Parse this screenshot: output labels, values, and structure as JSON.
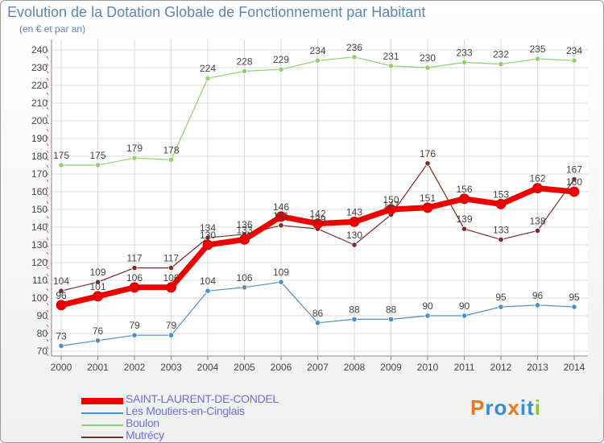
{
  "title": "Evolution de la Dotation Globale de Fonctionnement par Habitant",
  "subtitle": "(en € et par an)",
  "logo": {
    "text": "Proxiti",
    "colors": [
      "#e8781e",
      "#2f8fd1",
      "#2f8fd1",
      "#e8781e",
      "#2f8fd1",
      "#2f8fd1",
      "#8cc43c"
    ]
  },
  "chart_data": {
    "type": "line",
    "title": "Evolution de la Dotation Globale de Fonctionnement par Habitant",
    "ylabel": "(en € et par an)",
    "xlabel": "",
    "x": [
      2000,
      2001,
      2002,
      2003,
      2004,
      2005,
      2006,
      2007,
      2008,
      2009,
      2010,
      2011,
      2012,
      2013,
      2014
    ],
    "ylim": [
      70,
      240
    ],
    "yticks": [
      70,
      80,
      90,
      100,
      110,
      120,
      130,
      140,
      150,
      160,
      170,
      180,
      190,
      200,
      210,
      220,
      230,
      240
    ],
    "grid": true,
    "legend_position": "bottom-left",
    "series": [
      {
        "name": "SAINT-LAURENT-DE-CONDEL",
        "color": "#ee0000",
        "emphasis": true,
        "values": [
          96,
          101,
          106,
          106,
          130,
          133,
          146,
          142,
          143,
          150,
          151,
          156,
          153,
          162,
          160
        ]
      },
      {
        "name": "Les Moutiers-en-Cinglais",
        "color": "#4a90c8",
        "emphasis": false,
        "values": [
          73,
          76,
          79,
          79,
          104,
          106,
          109,
          86,
          88,
          88,
          90,
          90,
          95,
          96,
          95
        ]
      },
      {
        "name": "Boulon",
        "color": "#8fd16a",
        "emphasis": false,
        "values": [
          175,
          175,
          179,
          178,
          224,
          228,
          229,
          234,
          236,
          231,
          230,
          233,
          232,
          235,
          234
        ]
      },
      {
        "name": "Mutrécy",
        "color": "#7a2b2b",
        "emphasis": false,
        "values": [
          104,
          109,
          117,
          117,
          134,
          136,
          141,
          139,
          130,
          147,
          176,
          139,
          133,
          138,
          167
        ]
      }
    ]
  }
}
